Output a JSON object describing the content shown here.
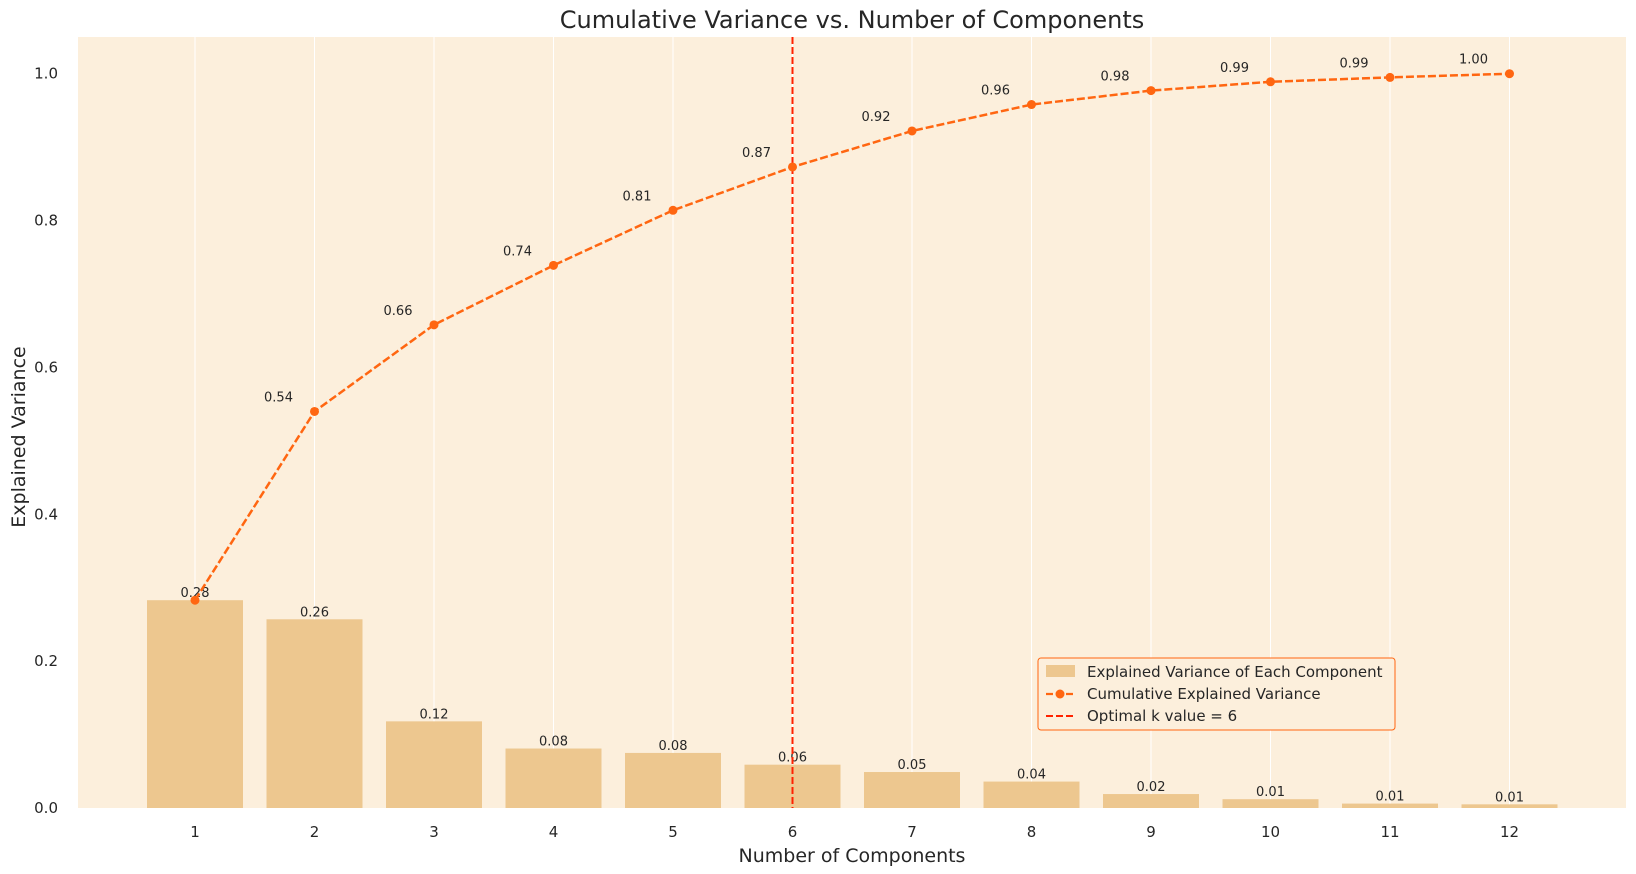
{
  "chart_data": {
    "type": "bar",
    "title": "Cumulative Variance vs. Number of Components",
    "xlabel": "Number of Components",
    "ylabel": "Explained Variance",
    "categories": [
      "1",
      "2",
      "3",
      "4",
      "5",
      "6",
      "7",
      "8",
      "9",
      "10",
      "11",
      "12"
    ],
    "ylim": [
      0,
      1.05
    ],
    "yticks": [
      "0.0",
      "0.2",
      "0.4",
      "0.6",
      "0.8",
      "1.0"
    ],
    "grid": "vertical",
    "legend_position": "lower-right",
    "series": [
      {
        "name": "Explained Variance of Each Component",
        "type": "bar",
        "values": [
          0.283,
          0.257,
          0.118,
          0.081,
          0.075,
          0.059,
          0.049,
          0.036,
          0.019,
          0.012,
          0.006,
          0.005
        ],
        "labels": [
          "0.28",
          "0.26",
          "0.12",
          "0.08",
          "0.08",
          "0.06",
          "0.05",
          "0.04",
          "0.02",
          "0.01",
          "0.01",
          "0.01"
        ],
        "color": "#edc78f"
      },
      {
        "name": "Cumulative Explained Variance",
        "type": "line",
        "values": [
          0.283,
          0.54,
          0.658,
          0.739,
          0.814,
          0.873,
          0.922,
          0.958,
          0.977,
          0.989,
          0.995,
          1.0
        ],
        "labels": [
          "0.28",
          "0.54",
          "0.66",
          "0.74",
          "0.81",
          "0.87",
          "0.92",
          "0.96",
          "0.98",
          "0.99",
          "0.99",
          "1.00"
        ],
        "color": "#ff6611"
      }
    ],
    "vline": {
      "x": 6,
      "name": "Optimal k value = 6",
      "color": "#ff2200"
    },
    "background": "#fcefdc"
  }
}
